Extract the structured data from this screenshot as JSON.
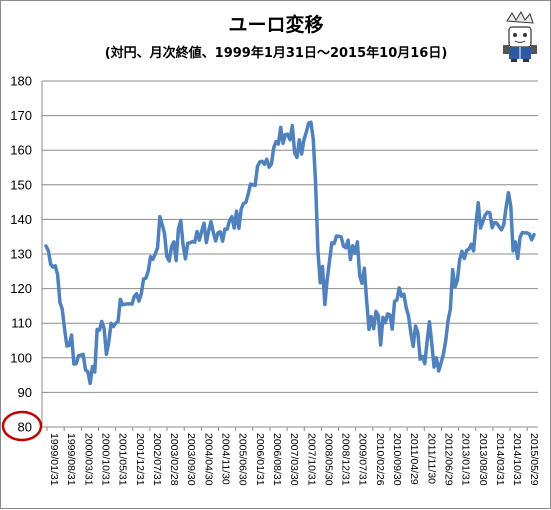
{
  "chart_data": {
    "type": "line",
    "title": "ユーロ変移",
    "subtitle": "(対円、月次終値、1999年1月31日～2015年10月16日)",
    "xlabel": "",
    "ylabel": "",
    "ylim": [
      80,
      180
    ],
    "yticks": [
      80,
      90,
      100,
      110,
      120,
      130,
      140,
      150,
      160,
      170,
      180
    ],
    "highlighted_ytick": 80,
    "grid": "horizontal",
    "legend": "none",
    "line_color": "#4f81bd",
    "highlight_color": "#c00000",
    "xtick_labels": [
      "1999/01/31",
      "1999/08/31",
      "2000/03/31",
      "2000/10/31",
      "2001/05/31",
      "2001/12/31",
      "2002/07/31",
      "2003/02/28",
      "2003/09/30",
      "2004/04/30",
      "2004/11/30",
      "2005/06/30",
      "2006/01/31",
      "2006/08/31",
      "2007/03/30",
      "2007/10/31",
      "2008/05/30",
      "2008/12/31",
      "2009/07/31",
      "2010/02/26",
      "2010/09/30",
      "2011/04/29",
      "2011/11/30",
      "2012/06/29",
      "2013/01/31",
      "2013/08/30",
      "2014/03/31",
      "2014/10/31",
      "2015/05/29"
    ],
    "series": [
      {
        "values": [
          132.3,
          131,
          127,
          126.2,
          126.6,
          124,
          116,
          114,
          108.3,
          103.4,
          103.6,
          106.6,
          98.2,
          98.3,
          100.6,
          100.8,
          101,
          96.5,
          96,
          92.6,
          97.5,
          95.9,
          108.2,
          108,
          110.5,
          108.5,
          101,
          104.5,
          110,
          109,
          110,
          110.5,
          116.9,
          115.3,
          115.5,
          115.6,
          115.6,
          115.5,
          117.8,
          118.5,
          116.4,
          118.5,
          122.8,
          123,
          125.1,
          129.2,
          128.5,
          130,
          131.8,
          140.8,
          138.5,
          135.9,
          129.3,
          128,
          132,
          133.5,
          128.1,
          137.3,
          139.7,
          132.5,
          128.6,
          133.1,
          133.2,
          133.6,
          133.4,
          136.5,
          134,
          136.6,
          138.9,
          133.3,
          136.7,
          139.4,
          136.2,
          133.8,
          136.1,
          136.4,
          133.7,
          137.2,
          137.2,
          139.7,
          140.8,
          137.5,
          142.4,
          137.4,
          143,
          144.6,
          144.9,
          147.3,
          150.2,
          150,
          149.8,
          155.3,
          156.6,
          156.8,
          155.9,
          157.4,
          155.1,
          156,
          160.7,
          162.5,
          161.8,
          166.6,
          162,
          164.5,
          164.6,
          163,
          167.1,
          159.2,
          157.9,
          163,
          158.9,
          163,
          165.2,
          167.8,
          168.1,
          163.2,
          150.7,
          131.1,
          121.7,
          126.4,
          115.4,
          122.6,
          128,
          133.2,
          133,
          135.2,
          135.1,
          135,
          132.3,
          131.8,
          134,
          128.4,
          132.4,
          130.2,
          133.5,
          123.8,
          121.5,
          125.9,
          116.3,
          108.2,
          111.9,
          108.4,
          113.4,
          112.2,
          103.7,
          111.7,
          110.1,
          112.7,
          112.4,
          108.3,
          116.3,
          116.7,
          120.2,
          117.8,
          118.4,
          114.5,
          112.1,
          107.2,
          103.3,
          109.2,
          107.4,
          99.6,
          100.4,
          98.3,
          104.8,
          110.4,
          104.2,
          97.3,
          100,
          96.2,
          98.5,
          101,
          104.9,
          110.7,
          114,
          125.5,
          120.5,
          122.3,
          128.3,
          130.8,
          128.7,
          131,
          131.4,
          132.8,
          130.9,
          138.5,
          144.8,
          137.5,
          139.4,
          141.3,
          142.1,
          141.9,
          137.6,
          139.1,
          138.9,
          137.9,
          137,
          138.5,
          143.5,
          147.7,
          143.9,
          130.9,
          133.5,
          128.7,
          134.9,
          136.2,
          136.1,
          136.1,
          135.8,
          134.1,
          135.6
        ]
      }
    ]
  }
}
